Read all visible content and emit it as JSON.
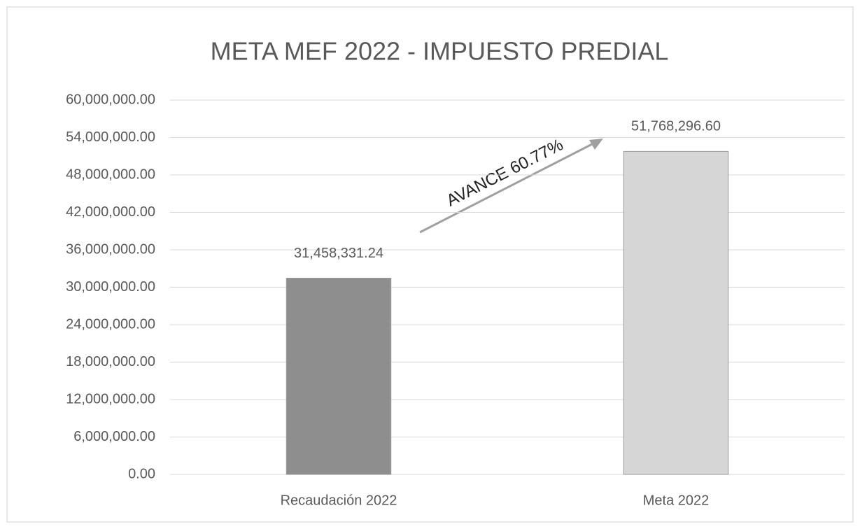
{
  "chart_data": {
    "type": "bar",
    "title": "META MEF 2022 - IMPUESTO PREDIAL",
    "categories": [
      "Recaudación 2022",
      "Meta 2022"
    ],
    "values": [
      31458331.24,
      51768296.6
    ],
    "value_labels": [
      "31,458,331.24",
      "51,768,296.60"
    ],
    "colors": [
      "#8e8e8e",
      "#d6d6d6"
    ],
    "annotation": "AVANCE 60.77%",
    "ylim": [
      0,
      60000000
    ],
    "yticks": [
      {
        "value": 0,
        "label": "0.00"
      },
      {
        "value": 6000000,
        "label": "6,000,000.00"
      },
      {
        "value": 12000000,
        "label": "12,000,000.00"
      },
      {
        "value": 18000000,
        "label": "18,000,000.00"
      },
      {
        "value": 24000000,
        "label": "24,000,000.00"
      },
      {
        "value": 30000000,
        "label": "30,000,000.00"
      },
      {
        "value": 36000000,
        "label": "36,000,000.00"
      },
      {
        "value": 42000000,
        "label": "42,000,000.00"
      },
      {
        "value": 48000000,
        "label": "48,000,000.00"
      },
      {
        "value": 54000000,
        "label": "54,000,000.00"
      },
      {
        "value": 60000000,
        "label": "60,000,000.00"
      }
    ],
    "grid": true
  }
}
